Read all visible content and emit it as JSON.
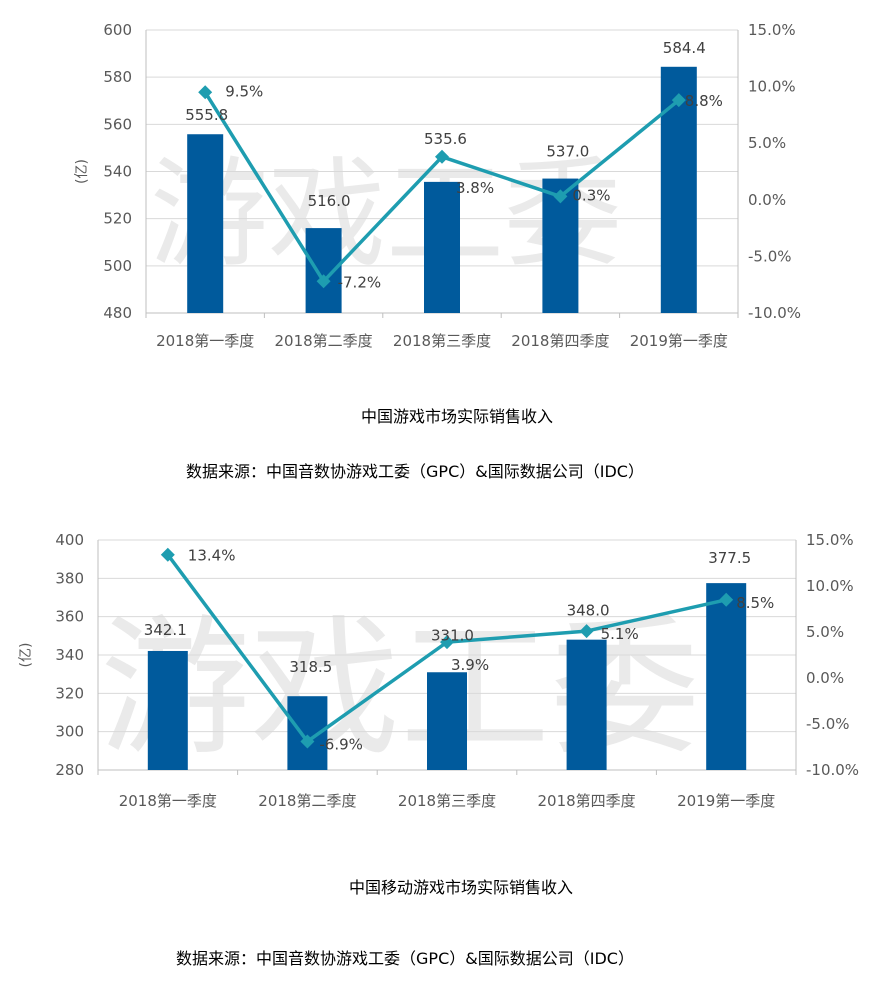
{
  "watermark": {
    "text": "游戏工委"
  },
  "chart_data": [
    {
      "type": "bar",
      "title": "中国游戏市场实际销售收入",
      "source": "数据来源：中国音数协游戏工委（GPC）&国际数据公司（IDC）",
      "ylabel": "(亿)",
      "categories": [
        "2018第一季度",
        "2018第二季度",
        "2018第三季度",
        "2018第四季度",
        "2019第一季度"
      ],
      "bar_values": [
        555.8,
        516.0,
        535.6,
        537.0,
        584.4
      ],
      "bar_labels": [
        "555.8",
        "516.0",
        "535.6",
        "537.0",
        "584.4"
      ],
      "line_values": [
        9.5,
        -7.2,
        3.8,
        0.3,
        8.8
      ],
      "line_labels": [
        "9.5%",
        "-7.2%",
        "3.8%",
        "0.3%",
        "8.8%"
      ],
      "ylim": [
        480,
        600
      ],
      "yticks": [
        "480",
        "500",
        "520",
        "540",
        "560",
        "580",
        "600"
      ],
      "y2lim": [
        -10,
        15
      ],
      "y2ticks": [
        "-10.0%",
        "-5.0%",
        "0.0%",
        "5.0%",
        "10.0%",
        "15.0%"
      ],
      "bar_color": "#005a9c",
      "line_color": "#1e9db0"
    },
    {
      "type": "bar",
      "title": "中国移动游戏市场实际销售收入",
      "source": "数据来源：中国音数协游戏工委（GPC）&国际数据公司（IDC）",
      "ylabel": "(亿)",
      "categories": [
        "2018第一季度",
        "2018第二季度",
        "2018第三季度",
        "2018第四季度",
        "2019第一季度"
      ],
      "bar_values": [
        342.1,
        318.5,
        331.0,
        348.0,
        377.5
      ],
      "bar_labels": [
        "342.1",
        "318.5",
        "331.0",
        "348.0",
        "377.5"
      ],
      "line_values": [
        13.4,
        -6.9,
        3.9,
        5.1,
        8.5
      ],
      "line_labels": [
        "13.4%",
        "-6.9%",
        "3.9%",
        "5.1%",
        "8.5%"
      ],
      "ylim": [
        280,
        400
      ],
      "yticks": [
        "280",
        "300",
        "320",
        "340",
        "360",
        "380",
        "400"
      ],
      "y2lim": [
        -10,
        15
      ],
      "y2ticks": [
        "-10.0%",
        "-5.0%",
        "0.0%",
        "5.0%",
        "10.0%",
        "15.0%"
      ],
      "bar_color": "#005a9c",
      "line_color": "#1e9db0"
    }
  ]
}
